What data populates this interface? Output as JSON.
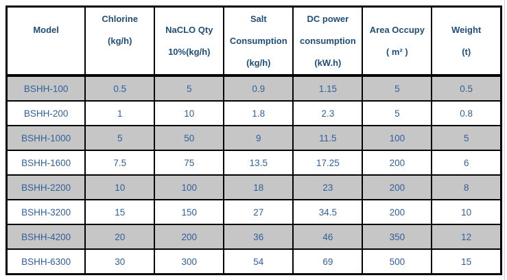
{
  "table": {
    "name": "electrolysis-unit-specifications",
    "columns": [
      {
        "id": "model",
        "header_lines": [
          "Model",
          ""
        ]
      },
      {
        "id": "chlorine",
        "header_lines": [
          "Chlorine",
          "(kg/h)",
          ""
        ]
      },
      {
        "id": "naclo-qty",
        "header_lines": [
          "NaCLO Qty",
          "10%(kg/h)"
        ]
      },
      {
        "id": "salt-consumption",
        "header_lines": [
          "Salt",
          "Consumption",
          "(kg/h)"
        ]
      },
      {
        "id": "dc-power",
        "header_lines": [
          "DC power",
          "consumption",
          "(kW.h)"
        ]
      },
      {
        "id": "area-occupy",
        "header_lines": [
          "Area Occupy",
          "( m² )"
        ]
      },
      {
        "id": "weight",
        "header_lines": [
          "Weight",
          "(t)"
        ]
      }
    ],
    "rows": [
      [
        "BSHH-100",
        "0.5",
        "5",
        "0.9",
        "1.15",
        "5",
        "0.5"
      ],
      [
        "BSHH-200",
        "1",
        "10",
        "1.8",
        "2.3",
        "5",
        "0.8"
      ],
      [
        "BSHH-1000",
        "5",
        "50",
        "9",
        "11.5",
        "100",
        "5"
      ],
      [
        "BSHH-1600",
        "7.5",
        "75",
        "13.5",
        "17.25",
        "200",
        "6"
      ],
      [
        "BSHH-2200",
        "10",
        "100",
        "18",
        "23",
        "200",
        "8"
      ],
      [
        "BSHH-3200",
        "15",
        "150",
        "27",
        "34.5",
        "200",
        "10"
      ],
      [
        "BSHH-4200",
        "20",
        "200",
        "36",
        "46",
        "350",
        "12"
      ],
      [
        "BSHH-6300",
        "30",
        "300",
        "54",
        "69",
        "500",
        "15"
      ]
    ],
    "colors": {
      "header_text": "#1F4E79",
      "body_text": "#30609B",
      "shaded_row_background": "#C6C6C6",
      "border": "#000000",
      "background": "#FFFFFF"
    }
  }
}
